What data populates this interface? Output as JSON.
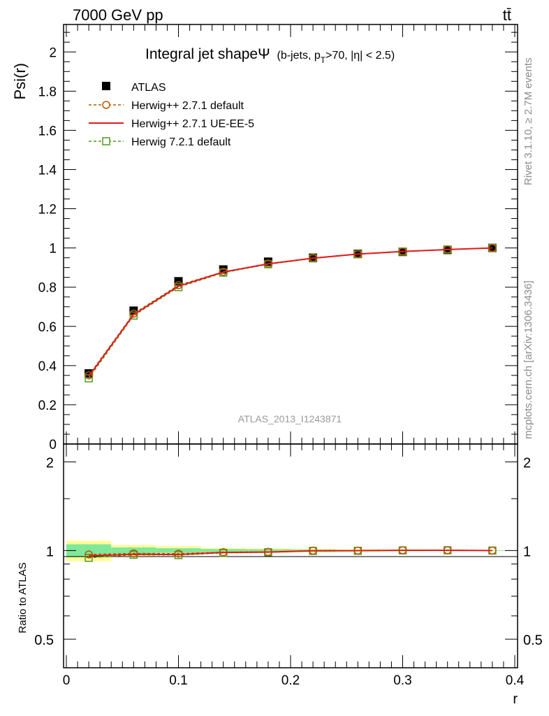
{
  "header": {
    "left": "7000 GeV pp",
    "right": "tt̄"
  },
  "side_labels": {
    "rivet": "Rivet 3.1.10, ≥ 2.7M events",
    "mcplots": "mcplots.cern.ch [arXiv:1306.3436]"
  },
  "chart_data": [
    {
      "type": "line",
      "title_main": "Integral jet shapeΨ",
      "title_sub": "(b-jets, p",
      "title_sub_T": "T",
      "title_sub_rest": ">70, |η| < 2.5)",
      "ylabel": "Psi(r)",
      "watermark": "ATLAS_2013_I1243871",
      "xlim": [
        -0.0025,
        0.4025
      ],
      "ylim": [
        0,
        2.14
      ],
      "yticks": [
        0,
        0.2,
        0.4,
        0.6,
        0.8,
        1,
        1.2,
        1.4,
        1.6,
        1.8,
        2
      ],
      "ytick_labels": [
        "0",
        "0.2",
        "0.4",
        "0.6",
        "0.8",
        "1",
        "1.2",
        "1.4",
        "1.6",
        "1.8",
        "2"
      ],
      "x": [
        0.02,
        0.06,
        0.1,
        0.14,
        0.18,
        0.22,
        0.26,
        0.3,
        0.34,
        0.38
      ],
      "series": [
        {
          "name": "ATLAS",
          "color": "#000000",
          "marker": "filled-square",
          "values": [
            0.36,
            0.68,
            0.83,
            0.89,
            0.93,
            0.95,
            0.97,
            0.98,
            0.99,
            1.0
          ]
        },
        {
          "name": "Herwig++ 2.7.1 default",
          "color": "#b35900",
          "marker": "open-circle",
          "line": "dashed",
          "values": [
            0.35,
            0.665,
            0.81,
            0.878,
            0.92,
            0.949,
            0.969,
            0.982,
            0.993,
            1.0
          ]
        },
        {
          "name": "Herwig++ 2.7.1 UE-EE-5",
          "color": "#e31a1c",
          "marker": "none",
          "line": "solid",
          "values": [
            0.345,
            0.66,
            0.805,
            0.877,
            0.919,
            0.948,
            0.969,
            0.982,
            0.992,
            1.0
          ]
        },
        {
          "name": "Herwig 7.2.1 default",
          "color": "#4f9a1a",
          "marker": "open-square",
          "line": "dashed",
          "values": [
            0.335,
            0.655,
            0.8,
            0.874,
            0.917,
            0.947,
            0.968,
            0.981,
            0.992,
            1.0
          ]
        }
      ],
      "legend_position": "top-left"
    },
    {
      "type": "line",
      "ylabel": "Ratio to ATLAS",
      "xlabel": "r",
      "xlim": [
        -0.0025,
        0.4025
      ],
      "ylim": [
        0.4,
        2.3
      ],
      "yscale": "log",
      "yticks": [
        0.5,
        1,
        2
      ],
      "ytick_labels": [
        "0.5",
        "1",
        "2"
      ],
      "xticks": [
        0,
        0.1,
        0.2,
        0.3,
        0.4
      ],
      "xtick_labels": [
        "0",
        "0.1",
        "0.2",
        "0.3",
        "0.4"
      ],
      "x": [
        0.02,
        0.06,
        0.1,
        0.14,
        0.18,
        0.22,
        0.26,
        0.3,
        0.34,
        0.38
      ],
      "bins": [
        [
          0,
          0.04
        ],
        [
          0.04,
          0.08
        ],
        [
          0.08,
          0.12
        ],
        [
          0.12,
          0.16
        ],
        [
          0.16,
          0.2
        ],
        [
          0.2,
          0.24
        ],
        [
          0.24,
          0.28
        ],
        [
          0.28,
          0.32
        ],
        [
          0.32,
          0.36
        ],
        [
          0.36,
          0.4
        ]
      ],
      "band_inner": [
        0.05,
        0.025,
        0.018,
        0.012,
        0.01,
        0.008,
        0.006,
        0.004,
        0.003,
        0.002
      ],
      "band_outer": [
        0.08,
        0.045,
        0.035,
        0.022,
        0.018,
        0.014,
        0.01,
        0.007,
        0.005,
        0.003
      ],
      "band_colors": {
        "inner": "#7fe89a",
        "outer": "#fffc9a"
      },
      "series": [
        {
          "name": "Herwig++ 2.7.1 default",
          "color": "#b35900",
          "marker": "open-circle",
          "line": "dashed",
          "values": [
            0.97,
            0.978,
            0.976,
            0.987,
            0.99,
            0.999,
            0.999,
            1.002,
            1.003,
            1.0
          ]
        },
        {
          "name": "Herwig++ 2.7.1 UE-EE-5",
          "color": "#e31a1c",
          "marker": "none",
          "line": "solid",
          "values": [
            0.96,
            0.971,
            0.97,
            0.985,
            0.988,
            0.998,
            0.999,
            1.002,
            1.002,
            1.0
          ]
        },
        {
          "name": "Herwig 7.2.1 default",
          "color": "#4f9a1a",
          "marker": "open-square",
          "line": "dashed",
          "values": [
            0.945,
            0.968,
            0.965,
            0.982,
            0.987,
            0.997,
            0.998,
            1.001,
            1.002,
            1.0
          ]
        }
      ]
    }
  ]
}
